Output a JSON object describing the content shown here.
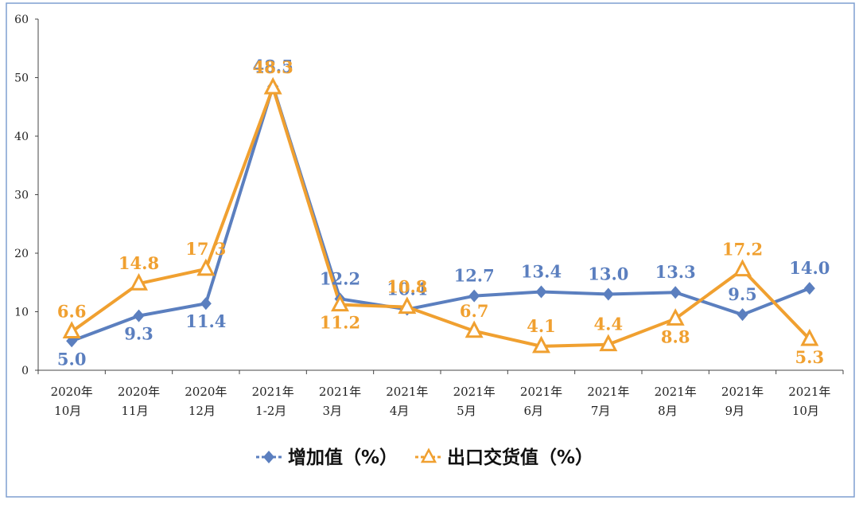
{
  "chart_data": {
    "type": "line",
    "title": "",
    "xlabel": "",
    "ylabel": "",
    "ylim": [
      0,
      60
    ],
    "yticks": [
      0,
      10,
      20,
      30,
      40,
      50,
      60
    ],
    "grid": false,
    "legend_position": "bottom",
    "categories": [
      [
        "2020年",
        "10月"
      ],
      [
        "2020年",
        "11月"
      ],
      [
        "2020年",
        "12月"
      ],
      [
        "2021年",
        "1-2月"
      ],
      [
        "2021年",
        "3月"
      ],
      [
        "2021年",
        "4月"
      ],
      [
        "2021年",
        "5月"
      ],
      [
        "2021年",
        "6月"
      ],
      [
        "2021年",
        "7月"
      ],
      [
        "2021年",
        "8月"
      ],
      [
        "2021年",
        "9月"
      ],
      [
        "2021年",
        "10月"
      ]
    ],
    "series": [
      {
        "name": "增加值（%）",
        "color": "#5B7FBF",
        "marker": "diamond",
        "values": [
          5.0,
          9.3,
          11.4,
          48.5,
          12.2,
          10.4,
          12.7,
          13.4,
          13.0,
          13.3,
          9.5,
          14.0
        ],
        "labels": [
          "5.0",
          "9.3",
          "11.4",
          "48.5",
          "12.2",
          "10.4",
          "12.7",
          "13.4",
          "13.0",
          "13.3",
          "9.5",
          "14.0"
        ],
        "label_side": [
          "below",
          "below",
          "below",
          "above",
          "above",
          "above",
          "above",
          "above",
          "above",
          "above",
          "above",
          "above"
        ]
      },
      {
        "name": "出口交货值（%）",
        "color": "#F0A030",
        "marker": "triangle",
        "values": [
          6.6,
          14.8,
          17.3,
          48.3,
          11.2,
          10.8,
          6.7,
          4.1,
          4.4,
          8.8,
          17.2,
          5.3
        ],
        "labels": [
          "6.6",
          "14.8",
          "17.3",
          "48.3",
          "11.2",
          "10.8",
          "6.7",
          "4.1",
          "4.4",
          "8.8",
          "17.2",
          "5.3"
        ],
        "label_side": [
          "above",
          "above",
          "above",
          "above",
          "below",
          "above",
          "above",
          "above",
          "above",
          "below",
          "above",
          "below"
        ]
      }
    ]
  },
  "legend": {
    "series_0": "增加值（%）",
    "series_1": "出口交货值（%）"
  }
}
